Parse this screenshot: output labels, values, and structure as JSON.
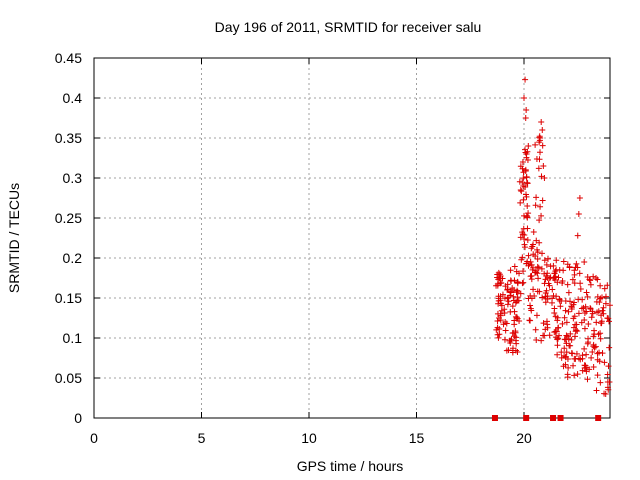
{
  "chart_data": {
    "type": "scatter",
    "title": "Day 196 of 2011, SRMTID for receiver salu",
    "xlabel": "GPS time / hours",
    "ylabel": "SRMTID / TECUs",
    "xlim": [
      0,
      24
    ],
    "ylim": [
      0,
      0.45
    ],
    "xticks": [
      0,
      5,
      10,
      15,
      20
    ],
    "xtick_labels": [
      "0",
      "5",
      "10",
      "15",
      "20"
    ],
    "yticks": [
      0,
      0.05,
      0.1,
      0.15,
      0.2,
      0.25,
      0.3,
      0.35,
      0.4,
      0.45
    ],
    "ytick_labels": [
      "0",
      "0.05",
      "0.1",
      "0.15",
      "0.2",
      "0.25",
      "0.3",
      "0.35",
      "0.4",
      "0.45"
    ],
    "grid": true,
    "marker": "+",
    "color": "#dd0000",
    "zero_markers": {
      "marker": "square",
      "x": [
        18.65,
        20.1,
        21.35,
        21.7,
        23.45
      ],
      "y": 0
    },
    "clusters": [
      {
        "x_range": [
          18.7,
          19.2
        ],
        "y_range": [
          0.095,
          0.185
        ],
        "count": 45
      },
      {
        "x_range": [
          19.2,
          19.8
        ],
        "y_range": [
          0.08,
          0.19
        ],
        "count": 60
      },
      {
        "x_range": [
          19.8,
          20.0
        ],
        "y_range": [
          0.15,
          0.33
        ],
        "count": 20
      },
      {
        "x_range": [
          20.0,
          20.2
        ],
        "y_range": [
          0.19,
          0.345
        ],
        "count": 28
      },
      {
        "x_range": [
          20.2,
          20.5
        ],
        "y_range": [
          0.12,
          0.24
        ],
        "count": 25
      },
      {
        "x_range": [
          20.5,
          20.9
        ],
        "y_range": [
          0.09,
          0.37
        ],
        "count": 40
      },
      {
        "x_range": [
          20.9,
          21.5
        ],
        "y_range": [
          0.1,
          0.2
        ],
        "count": 50
      },
      {
        "x_range": [
          21.5,
          22.0
        ],
        "y_range": [
          0.06,
          0.2
        ],
        "count": 40
      },
      {
        "x_range": [
          22.0,
          22.7
        ],
        "y_range": [
          0.05,
          0.2
        ],
        "count": 55
      },
      {
        "x_range": [
          22.7,
          23.3
        ],
        "y_range": [
          0.045,
          0.18
        ],
        "count": 45
      },
      {
        "x_range": [
          23.3,
          24.0
        ],
        "y_range": [
          0.03,
          0.175
        ],
        "count": 45
      }
    ],
    "peaks": [
      {
        "x": 20.05,
        "y": 0.423
      },
      {
        "x": 20.0,
        "y": 0.4
      },
      {
        "x": 20.1,
        "y": 0.385
      },
      {
        "x": 20.08,
        "y": 0.375
      },
      {
        "x": 20.8,
        "y": 0.37
      },
      {
        "x": 20.85,
        "y": 0.36
      },
      {
        "x": 20.75,
        "y": 0.35
      },
      {
        "x": 20.2,
        "y": 0.34
      },
      {
        "x": 20.12,
        "y": 0.33
      },
      {
        "x": 19.95,
        "y": 0.32
      },
      {
        "x": 20.9,
        "y": 0.315
      },
      {
        "x": 20.95,
        "y": 0.3
      },
      {
        "x": 19.85,
        "y": 0.285
      },
      {
        "x": 22.6,
        "y": 0.275
      },
      {
        "x": 20.15,
        "y": 0.265
      },
      {
        "x": 22.55,
        "y": 0.255
      },
      {
        "x": 22.5,
        "y": 0.228
      },
      {
        "x": 22.8,
        "y": 0.195
      },
      {
        "x": 23.35,
        "y": 0.175
      },
      {
        "x": 23.8,
        "y": 0.03
      },
      {
        "x": 23.9,
        "y": 0.045
      }
    ]
  }
}
